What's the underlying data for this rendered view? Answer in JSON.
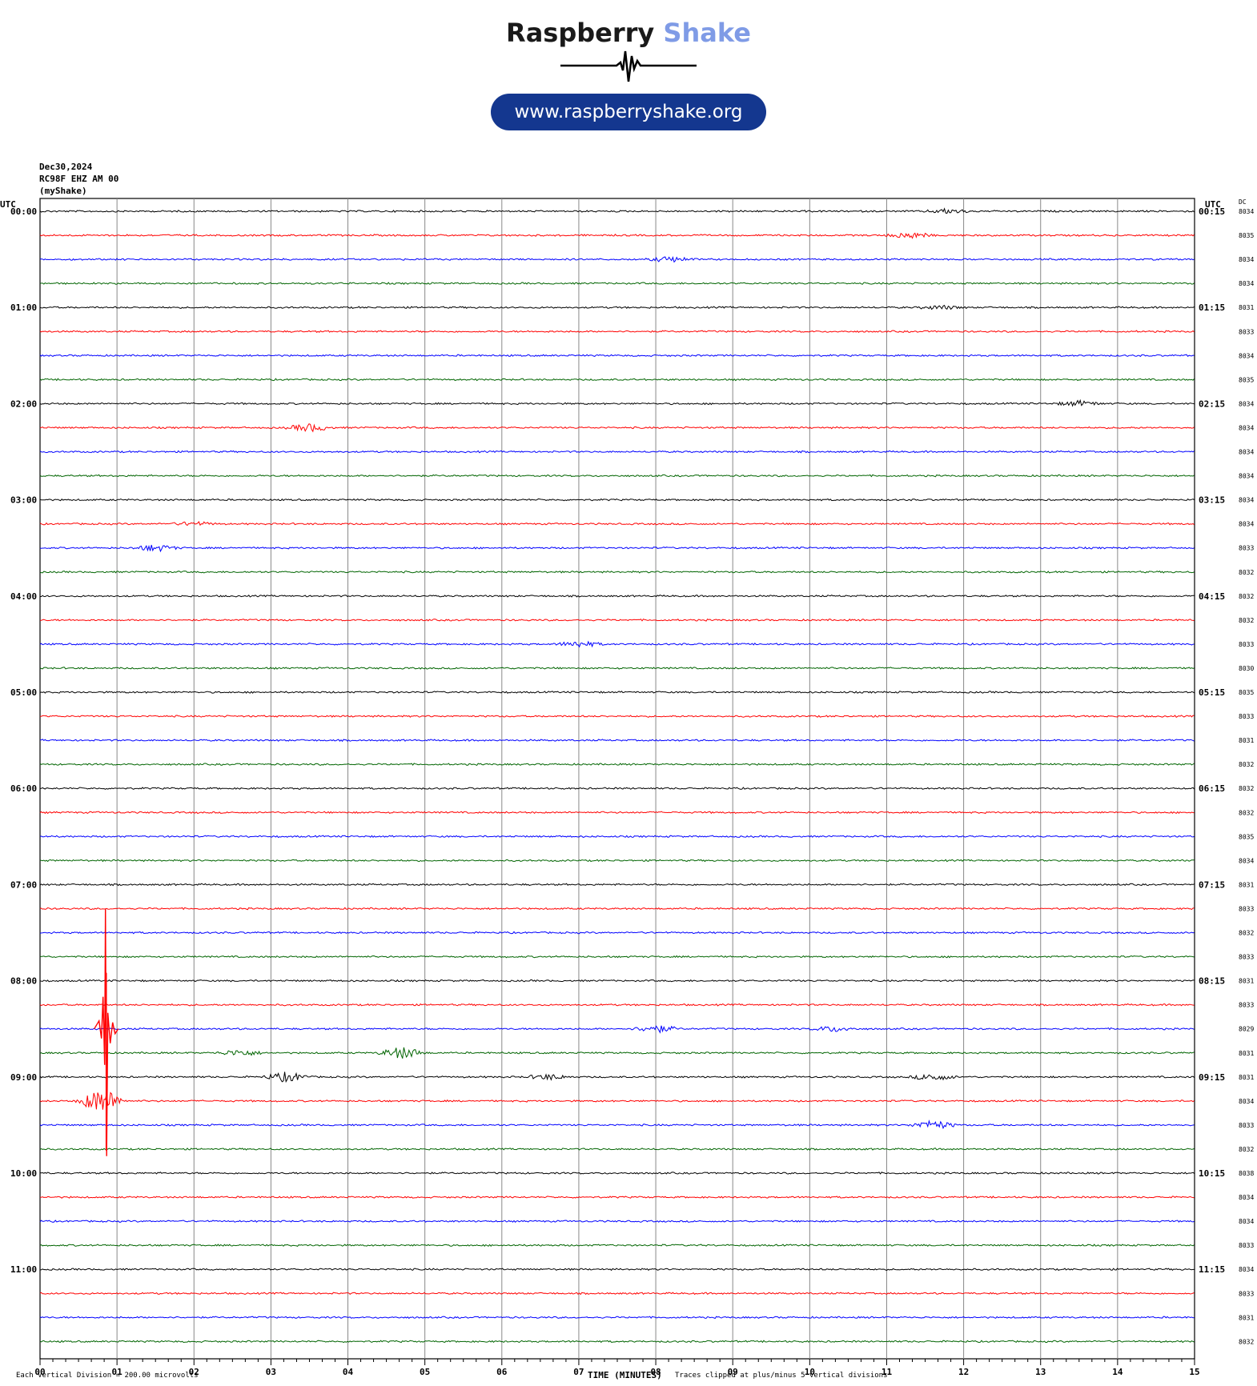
{
  "brand": {
    "word1": "Raspberry",
    "word2": "Shake",
    "url": "www.raspberryshake.org"
  },
  "header": {
    "date": "Dec30,2024",
    "station": "RC98F EHZ AM 00",
    "source": "(myShake)"
  },
  "labels": {
    "utc_left": "UTC",
    "utc_right": "UTC",
    "dc": "DC"
  },
  "footer": {
    "scale": "Each Vertical Division =  200.00 microvolts",
    "xlabel": "TIME (MINUTES)",
    "clip_note": "Traces clipped at plus/minus 5 vertical divisions"
  },
  "chart_data": {
    "type": "line",
    "title": "",
    "xlabel": "TIME (MINUTES)",
    "ylabel": "",
    "xlim": [
      0,
      15
    ],
    "x_ticks": [
      "00",
      "01",
      "02",
      "03",
      "04",
      "05",
      "06",
      "07",
      "08",
      "09",
      "10",
      "11",
      "12",
      "13",
      "14",
      "15"
    ],
    "trace_minutes": 15,
    "trace_colors": [
      "#000000",
      "#ff0000",
      "#0000ff",
      "#006400"
    ],
    "left_time_labels": [
      "00:00",
      "01:00",
      "02:00",
      "03:00",
      "04:00",
      "05:00",
      "06:00",
      "07:00",
      "08:00",
      "09:00",
      "10:00",
      "11:00"
    ],
    "right_time_labels": [
      "00:15",
      "01:15",
      "02:15",
      "03:15",
      "04:15",
      "05:15",
      "06:15",
      "07:15",
      "08:15",
      "09:15",
      "10:15",
      "11:15"
    ],
    "dc_offsets": [
      "8034",
      "8035",
      "8034",
      "8034",
      "8031",
      "8033",
      "8034",
      "8035",
      "8034",
      "8034",
      "8034",
      "8034",
      "8034",
      "8034",
      "8033",
      "8032",
      "8032",
      "8032",
      "8033",
      "8030",
      "8035",
      "8033",
      "8031",
      "8032",
      "8032",
      "8032",
      "8035",
      "8034",
      "8031",
      "8033",
      "8032",
      "8033",
      "8031",
      "8033",
      "8029",
      "8031",
      "8031",
      "8034",
      "8033",
      "8032",
      "8038",
      "8034",
      "8034",
      "8033",
      "8034",
      "8033",
      "8031",
      "8032"
    ],
    "events": [
      {
        "trace": 0,
        "minute": 11.8,
        "amp": 0.6
      },
      {
        "trace": 1,
        "minute": 11.3,
        "amp": 0.8
      },
      {
        "trace": 2,
        "minute": 8.2,
        "amp": 0.7
      },
      {
        "trace": 4,
        "minute": 11.7,
        "amp": 0.5
      },
      {
        "trace": 9,
        "minute": 3.5,
        "amp": 1.0
      },
      {
        "trace": 8,
        "minute": 13.5,
        "amp": 0.7
      },
      {
        "trace": 14,
        "minute": 1.5,
        "amp": 0.9
      },
      {
        "trace": 13,
        "minute": 2.0,
        "amp": 0.5
      },
      {
        "trace": 18,
        "minute": 7.0,
        "amp": 0.8
      },
      {
        "trace": 34,
        "minute": 8.0,
        "amp": 1.0
      },
      {
        "trace": 34,
        "minute": 10.3,
        "amp": 0.7
      },
      {
        "trace": 35,
        "minute": 4.7,
        "amp": 1.6
      },
      {
        "trace": 35,
        "minute": 2.6,
        "amp": 0.8
      },
      {
        "trace": 36,
        "minute": 3.2,
        "amp": 1.3
      },
      {
        "trace": 36,
        "minute": 11.6,
        "amp": 0.9
      },
      {
        "trace": 37,
        "minute": 0.8,
        "amp": 3.5
      },
      {
        "trace": 38,
        "minute": 11.6,
        "amp": 1.2
      },
      {
        "trace": 36,
        "minute": 6.6,
        "amp": 0.7
      }
    ],
    "large_event": {
      "trace": 33,
      "minute": 0.85,
      "peak_up": 5,
      "peak_down": 9
    }
  }
}
